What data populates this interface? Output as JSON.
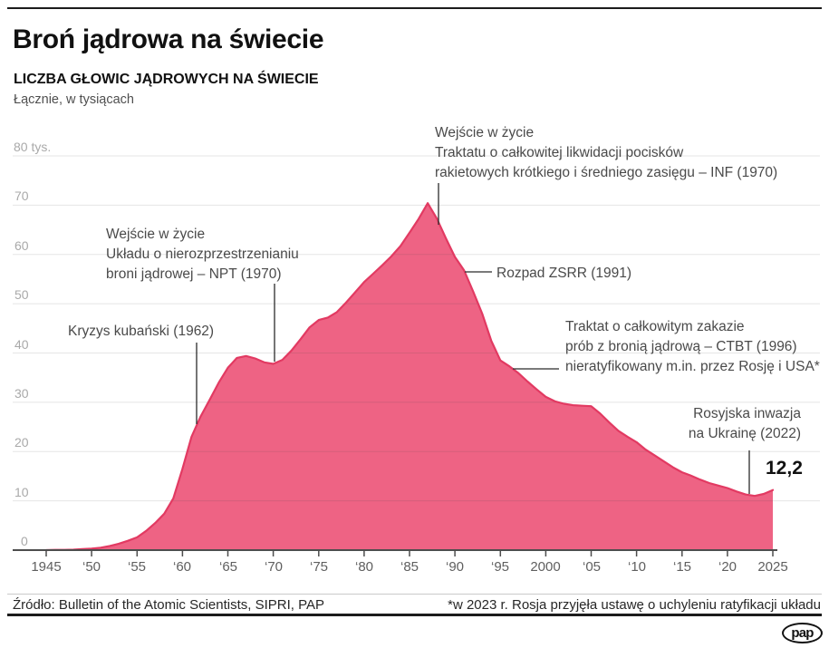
{
  "header": {
    "title": "Broń jądrowa na świecie",
    "subtitle": "LICZBA GŁOWIC JĄDROWYCH NA ŚWIECIE",
    "unit": "Łącznie, w tysiącach"
  },
  "chart_data": {
    "type": "area",
    "title": "LICZBA GŁOWIC JĄDROWYCH NA ŚWIECIE",
    "ylabel": "tysiące głowic",
    "xlim": [
      1945,
      2025
    ],
    "ylim": [
      0,
      80
    ],
    "x": [
      1945,
      1946,
      1947,
      1948,
      1949,
      1950,
      1951,
      1952,
      1953,
      1954,
      1955,
      1956,
      1957,
      1958,
      1959,
      1960,
      1961,
      1962,
      1963,
      1964,
      1965,
      1966,
      1967,
      1968,
      1969,
      1970,
      1971,
      1972,
      1973,
      1974,
      1975,
      1976,
      1977,
      1978,
      1979,
      1980,
      1981,
      1982,
      1983,
      1984,
      1985,
      1986,
      1987,
      1988,
      1989,
      1990,
      1991,
      1992,
      1993,
      1994,
      1995,
      1996,
      1997,
      1998,
      1999,
      2000,
      2001,
      2002,
      2003,
      2004,
      2005,
      2006,
      2007,
      2008,
      2009,
      2010,
      2011,
      2012,
      2013,
      2014,
      2015,
      2016,
      2017,
      2018,
      2019,
      2020,
      2021,
      2022,
      2023,
      2024,
      2025
    ],
    "values": [
      0,
      0.05,
      0.05,
      0.1,
      0.2,
      0.3,
      0.5,
      0.85,
      1.3,
      1.9,
      2.6,
      3.9,
      5.5,
      7.4,
      10.5,
      16.5,
      23.0,
      27.1,
      30.5,
      34.0,
      37.0,
      39.0,
      39.4,
      38.9,
      38.1,
      37.8,
      38.6,
      40.5,
      42.8,
      45.2,
      46.7,
      47.2,
      48.3,
      50.2,
      52.3,
      54.4,
      56.1,
      57.8,
      59.6,
      61.7,
      64.4,
      67.2,
      70.4,
      67.3,
      63.3,
      59.5,
      56.8,
      52.5,
      48.0,
      42.5,
      38.5,
      37.3,
      35.9,
      34.2,
      32.6,
      31.1,
      30.2,
      29.7,
      29.4,
      29.3,
      29.2,
      27.7,
      25.9,
      24.2,
      23.0,
      21.9,
      20.4,
      19.2,
      18.0,
      16.8,
      15.8,
      15.1,
      14.3,
      13.6,
      13.1,
      12.6,
      11.9,
      11.3,
      11.0,
      11.4,
      12.2
    ],
    "x_ticks": {
      "labels": [
        "1945",
        "‘50",
        "‘55",
        "‘60",
        "‘65",
        "‘70",
        "‘75",
        "‘80",
        "‘85",
        "‘90",
        "‘95",
        "2000",
        "‘05",
        "‘10",
        "‘15",
        "‘20",
        "2025"
      ],
      "years": [
        1945,
        1950,
        1955,
        1960,
        1965,
        1970,
        1975,
        1980,
        1985,
        1990,
        1995,
        2000,
        2005,
        2010,
        2015,
        2020,
        2025
      ]
    },
    "y_ticks": {
      "labels": [
        "80 tys.",
        "70",
        "60",
        "50",
        "40",
        "30",
        "20",
        "10",
        "0"
      ],
      "values": [
        80,
        70,
        60,
        50,
        40,
        30,
        20,
        10,
        0
      ]
    },
    "end_value_label": "12,2",
    "colors": {
      "fill": "#ee6384",
      "stroke": "#e23a62",
      "gridline": "rgba(70,70,70,0.14)",
      "axis": "#4d4d4d",
      "leader": "#2b2b2b"
    },
    "annotations": [
      {
        "id": "cuban-crisis",
        "text": "Kryzys kubański (1962)",
        "leader": [
          217,
          378,
          217,
          468
        ]
      },
      {
        "id": "npt-treaty",
        "text": "Wejście w życie\nUkładu o nierozprzestrzenianiu\nbroni jądrowej – NPT (1970)",
        "leader": [
          303,
          313,
          303,
          399
        ]
      },
      {
        "id": "inf-treaty",
        "text": "Wejście w życie\nTraktatu o całkowitej likwidacji pocisków\nrakietowych krótkiego i średniego zasięgu – INF (1970)",
        "leader": [
          484,
          202,
          484,
          248
        ]
      },
      {
        "id": "ussr-collapse",
        "text": "Rozpad ZSRR (1991)",
        "leader": [
          513,
          300,
          543,
          300
        ]
      },
      {
        "id": "ctbt-treaty",
        "text": "Traktat o całkowitym zakazie\nprób z bronią jądrową – CTBT (1996)\nnieratyfikowany m.in. przez Rosję i USA*",
        "leader": [
          566,
          407,
          617,
          407
        ]
      },
      {
        "id": "ukraine-invasion",
        "text": "Rosyjska inwazja\nna Ukrainę (2022)",
        "leader": [
          827,
          497,
          827,
          545
        ]
      }
    ]
  },
  "footer": {
    "source": "Źródło: Bulletin of the Atomic Scientists, SIPRI, PAP",
    "note": "*w 2023 r. Rosja przyjęła ustawę o uchyleniu ratyfikacji układu",
    "logo": "pap"
  }
}
